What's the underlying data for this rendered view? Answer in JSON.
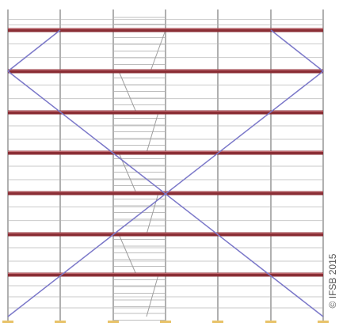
{
  "copyright": "© IFSB 2015"
}
